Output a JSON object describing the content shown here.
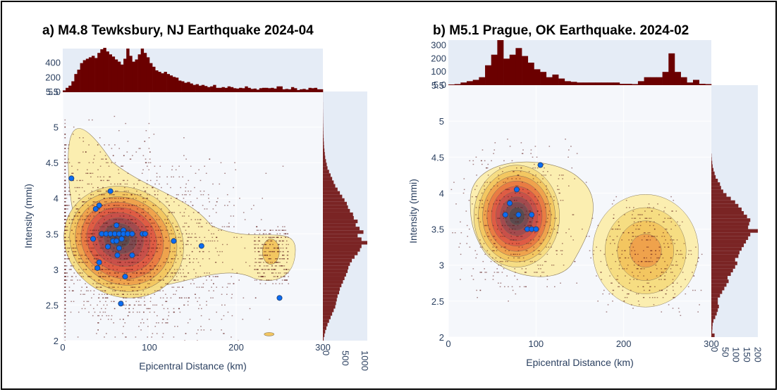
{
  "chart_data": [
    {
      "type": "scatter",
      "title": "a) M4.8 Tewksbury, NJ Earthquake 2024-04",
      "xlabel": "Epicentral Distance (km)",
      "ylabel": "Intensity (mmi)",
      "xlim": [
        0,
        300
      ],
      "ylim": [
        2,
        5.5
      ],
      "xticks": [
        "0",
        "100",
        "200",
        "300"
      ],
      "yticks": [
        "2",
        "2.5",
        "3",
        "3.5",
        "4",
        "4.5",
        "5",
        "5.5"
      ],
      "top_hist_ticks": [
        "5.0",
        "200",
        "400"
      ],
      "top_hist_max": 600,
      "right_hist_ticks": [
        "0",
        "500",
        "1000"
      ],
      "right_hist_max": 1150,
      "top_hist": [
        25,
        60,
        90,
        150,
        250,
        310,
        400,
        440,
        460,
        480,
        500,
        470,
        540,
        590,
        610,
        560,
        520,
        490,
        450,
        420,
        380,
        460,
        600,
        500,
        420,
        450,
        520,
        600,
        540,
        480,
        400,
        350,
        300,
        280,
        260,
        280,
        250,
        230,
        210,
        200,
        160,
        150,
        130,
        140,
        120,
        100,
        110,
        90,
        100,
        85,
        70,
        80,
        100,
        60,
        60,
        70,
        60,
        80,
        70,
        55,
        50,
        60,
        55,
        80,
        60,
        45,
        50,
        35,
        55,
        60,
        60,
        55,
        60,
        50,
        80,
        80,
        40,
        45,
        40,
        70,
        55,
        30,
        40,
        45,
        35,
        60,
        55,
        60,
        40,
        40
      ],
      "right_hist_y": [
        2.025,
        2.075,
        2.125,
        2.175,
        2.225,
        2.275,
        2.325,
        2.375,
        2.425,
        2.475,
        2.525,
        2.575,
        2.625,
        2.675,
        2.725,
        2.775,
        2.825,
        2.875,
        2.925,
        2.975,
        3.025,
        3.075,
        3.125,
        3.175,
        3.225,
        3.275,
        3.325,
        3.375,
        3.425,
        3.475,
        3.525,
        3.575,
        3.625,
        3.675,
        3.725,
        3.775,
        3.825,
        3.875,
        3.925,
        3.975,
        4.025,
        4.075,
        4.125,
        4.175,
        4.225,
        4.275,
        4.325,
        4.375,
        4.425,
        4.475,
        4.525,
        4.575,
        4.625,
        4.675,
        4.725,
        4.775,
        4.825,
        4.875,
        4.925,
        4.975,
        5.025,
        5.075,
        5.125,
        5.175,
        5.225,
        5.275,
        5.325,
        5.375,
        5.425,
        5.475
      ],
      "right_hist_counts": [
        20,
        40,
        60,
        90,
        120,
        160,
        200,
        240,
        280,
        320,
        340,
        360,
        380,
        420,
        440,
        480,
        520,
        560,
        600,
        640,
        660,
        700,
        750,
        820,
        900,
        960,
        1000,
        1150,
        1000,
        900,
        1050,
        950,
        850,
        900,
        800,
        780,
        700,
        650,
        620,
        560,
        500,
        440,
        380,
        320,
        280,
        240,
        200,
        160,
        120,
        100,
        80,
        60,
        50,
        40,
        30,
        25,
        20,
        15,
        12,
        10,
        8,
        6,
        5,
        4,
        3,
        2,
        2,
        1,
        1,
        1
      ],
      "station_points": [
        [
          10,
          4.28
        ],
        [
          55,
          4.1
        ],
        [
          42,
          3.9
        ],
        [
          38,
          3.85
        ],
        [
          62,
          3.62
        ],
        [
          70,
          3.55
        ],
        [
          45,
          3.5
        ],
        [
          50,
          3.5
        ],
        [
          55,
          3.5
        ],
        [
          60,
          3.5
        ],
        [
          65,
          3.5
        ],
        [
          70,
          3.5
        ],
        [
          75,
          3.5
        ],
        [
          80,
          3.5
        ],
        [
          92,
          3.5
        ],
        [
          95,
          3.5
        ],
        [
          35,
          3.43
        ],
        [
          68,
          3.43
        ],
        [
          58,
          3.4
        ],
        [
          62,
          3.4
        ],
        [
          128,
          3.4
        ],
        [
          52,
          3.32
        ],
        [
          65,
          3.3
        ],
        [
          160,
          3.33
        ],
        [
          63,
          3.2
        ],
        [
          80,
          3.2
        ],
        [
          42,
          3.1
        ],
        [
          40,
          3.02
        ],
        [
          72,
          2.9
        ],
        [
          250,
          2.6
        ],
        [
          67,
          2.52
        ]
      ],
      "density_center": [
        65,
        3.45
      ],
      "density_mode2": [
        240,
        3.25
      ]
    },
    {
      "type": "scatter",
      "title": "b) M5.1 Prague, OK Earthquake. 2024-02",
      "xlabel": "Epicentral Distance (km)",
      "ylabel": "Intensity (mmi)",
      "xlim": [
        0,
        300
      ],
      "ylim": [
        2,
        5.5
      ],
      "xticks": [
        "0",
        "100",
        "200",
        "300"
      ],
      "yticks": [
        "2",
        "2.5",
        "3",
        "3.5",
        "4",
        "4.5",
        "5",
        "5.5"
      ],
      "top_hist_ticks": [
        "5.0",
        "100",
        "200",
        "300"
      ],
      "top_hist_max": 340,
      "right_hist_ticks": [
        "0",
        "50",
        "100",
        "150",
        "200"
      ],
      "right_hist_max": 215,
      "top_hist": [
        5,
        8,
        20,
        30,
        40,
        60,
        150,
        230,
        340,
        200,
        230,
        280,
        220,
        170,
        120,
        100,
        60,
        80,
        50,
        30,
        25,
        20,
        20,
        20,
        20,
        20,
        20,
        20,
        10,
        10,
        8,
        30,
        60,
        60,
        60,
        100,
        240,
        100,
        60,
        20,
        40,
        10,
        8
      ],
      "right_hist_y": [
        2.025,
        2.075,
        2.125,
        2.175,
        2.225,
        2.275,
        2.325,
        2.375,
        2.425,
        2.475,
        2.525,
        2.575,
        2.625,
        2.675,
        2.725,
        2.775,
        2.825,
        2.875,
        2.925,
        2.975,
        3.025,
        3.075,
        3.125,
        3.175,
        3.225,
        3.275,
        3.325,
        3.375,
        3.425,
        3.475,
        3.525,
        3.575,
        3.625,
        3.675,
        3.725,
        3.775,
        3.825,
        3.875,
        3.925,
        3.975,
        4.025,
        4.075,
        4.125,
        4.175,
        4.225,
        4.275,
        4.325,
        4.375,
        4.425,
        4.475,
        4.525
      ],
      "right_hist_counts": [
        15,
        4,
        5,
        6,
        10,
        18,
        25,
        30,
        35,
        30,
        30,
        40,
        50,
        60,
        70,
        80,
        75,
        90,
        100,
        110,
        120,
        110,
        125,
        130,
        140,
        150,
        160,
        170,
        180,
        215,
        170,
        175,
        180,
        165,
        150,
        140,
        125,
        110,
        90,
        70,
        55,
        45,
        40,
        30,
        20,
        15,
        10,
        6,
        4,
        2,
        1
      ],
      "station_points": [
        [
          105,
          4.39
        ],
        [
          78,
          4.05
        ],
        [
          70,
          3.86
        ],
        [
          80,
          3.7
        ],
        [
          65,
          3.7
        ],
        [
          95,
          3.7
        ],
        [
          90,
          3.5
        ],
        [
          95,
          3.5
        ],
        [
          100,
          3.5
        ]
      ],
      "density_center": [
        78,
        3.68
      ],
      "density_mode2": [
        225,
        3.2
      ]
    }
  ]
}
